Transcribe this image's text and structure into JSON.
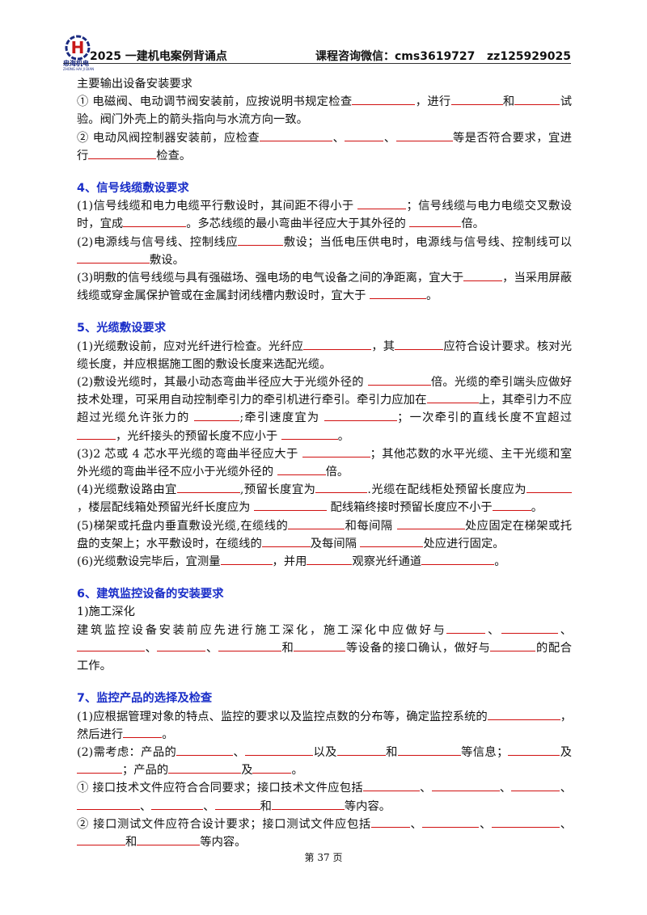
{
  "header": {
    "logo_text": "忠海机电",
    "logo_sub": "ZHONG HAI JI DIAN",
    "title": "2025 一建机电案例背诵点",
    "contact": "课程咨询微信：cms3619727   zz125929025"
  },
  "sections": [
    {
      "paragraphs": [
        [
          "主要输出设备安装要求"
        ],
        [
          "① 电磁阀、电动调节阀安装前，应按说明书规定检查",
          "，进行",
          "和",
          "试验。阀门外壳上的箭头指向与水流方向一致。"
        ],
        [
          "② 电动风阀控制器安装前，应检查",
          "、",
          "、",
          "等是否符合要求，宜进行",
          "检查。"
        ]
      ]
    },
    {
      "heading": "4、信号线缆敷设要求",
      "paragraphs": [
        [
          "(1)信号线缆和电力电缆平行敷设时，其间距不得小于 ",
          "；信号线缆与电力电缆交叉敷设时，宜成",
          "。多芯线缆的最小弯曲半径应大于其外径的 ",
          "倍。"
        ],
        [
          "(2)电源线与信号线、控制线应",
          "敷设；当低电压供电时，电源线与信号线、控制线可以",
          "敷设。"
        ],
        [
          "(3)明敷的信号线缆与具有强磁场、强电场的电气设备之间的净距离，宜大于",
          "，当采用屏蔽线缆或穿金属保护管或在金属封闭线槽内敷设时，宜大于 ",
          "。"
        ]
      ]
    },
    {
      "heading": "5、光缆敷设要求",
      "paragraphs": [
        [
          "(1)光缆敷设前，应对光纤进行检查。光纤应",
          "，其",
          "应符合设计要求。核对光缆长度，并应根据施工图的敷设长度来选配光缆。"
        ],
        [
          "(2)敷设光缆时，其最小动态弯曲半径应大于光缆外径的 ",
          "倍。光缆的牵引端头应做好技术处理，可采用自动控制牵引力的牵引机进行牵引。牵引力应加在",
          "上，其牵引力不应超过光缆允许张力的 ",
          ";牵引速度宜为 ",
          "；一次牵引的直线长度不宜超过 ",
          "，光纤接头的预留长度不应小于 ",
          "。"
        ],
        [
          "(3)2 芯或 4 芯水平光缆的弯曲半径应大于 ",
          "；其他芯数的水平光缆、主干光缆和室外光缆的弯曲半径不应小于光缆外径的 ",
          "倍。"
        ],
        [
          "(4)光缆敷设路由宜",
          ",预留长度宜为",
          ".光缆在配线柜处预留长度应为",
          "，楼层配线箱处预留光纤长度应为 ",
          " 配线箱终接时预留长度应不小于",
          "。"
        ],
        [
          "(5)梯架或托盘内垂直敷设光缆,在缆线的",
          "和每间隔 ",
          "处应固定在梯架或托盘的支架上；水平敷设时，在缆线的",
          "及每间隔 ",
          "处应进行固定。"
        ],
        [
          "(6)光缆敷设完毕后，宜测量",
          "，并用",
          "观察光纤通道",
          "。"
        ]
      ]
    },
    {
      "heading": "6、建筑监控设备的安装要求",
      "paragraphs": [
        [
          "1)施工深化"
        ],
        [
          "建筑监控设备安装前应先进行施工深化，施工深化中应做好与",
          "、",
          "、",
          "、",
          "、",
          "和",
          "等设备的接口确认，做好与",
          "的配合工作。"
        ]
      ]
    },
    {
      "heading": "7、监控产品的选择及检查",
      "paragraphs": [
        [
          "(1)应根据管理对象的特点、监控的要求以及监控点数的分布等，确定监控系统的",
          "，然后进行",
          "。"
        ],
        [
          "(2)需考虑：产品的",
          "、",
          "以及",
          "和",
          "等信息；",
          "及",
          "；产品的",
          "及",
          "。"
        ],
        [
          "① 接口技术文件应符合合同要求；接口技术文件应包括",
          "、",
          "、",
          "、",
          "、",
          "、",
          "和",
          "等内容。"
        ],
        [
          "② 接口测试文件应符合设计要求；接口测试文件应包括",
          "、",
          "、",
          "、",
          "和",
          "等内容。"
        ]
      ]
    }
  ],
  "footer": {
    "page": "第 37 页"
  }
}
